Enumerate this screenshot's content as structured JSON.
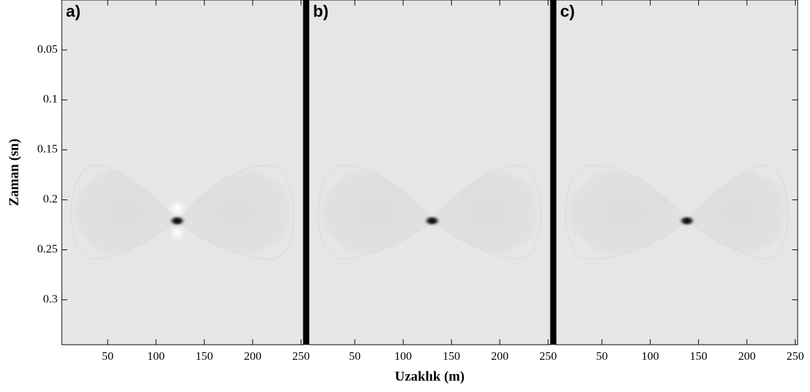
{
  "chart_data": [
    {
      "type": "heatmap",
      "label": "a)",
      "ylabel": "Zaman (sn)",
      "xlim": [
        2.5,
        252.5
      ],
      "xticks": [
        50,
        100,
        150,
        200,
        250
      ],
      "ylim": [
        0,
        0.345
      ],
      "yticks": [
        0.05,
        0.1,
        0.15,
        0.2,
        0.25,
        0.3
      ],
      "peak": {
        "x": 122,
        "y": 0.221
      },
      "color": "#e6e6e6"
    },
    {
      "type": "heatmap",
      "label": "b)",
      "xlabel": "Uzaklık (m)",
      "xlim": [
        2.5,
        252.5
      ],
      "xticks": [
        50,
        100,
        150,
        200,
        250
      ],
      "ylim": [
        0,
        0.345
      ],
      "peak": {
        "x": 130,
        "y": 0.221
      },
      "color": "#e6e6e6"
    },
    {
      "type": "heatmap",
      "label": "c)",
      "xlim": [
        2.5,
        252.5
      ],
      "xticks": [
        50,
        100,
        150,
        200,
        250
      ],
      "ylim": [
        0,
        0.345
      ],
      "peak": {
        "x": 138,
        "y": 0.221
      },
      "color": "#e6e6e6"
    }
  ]
}
